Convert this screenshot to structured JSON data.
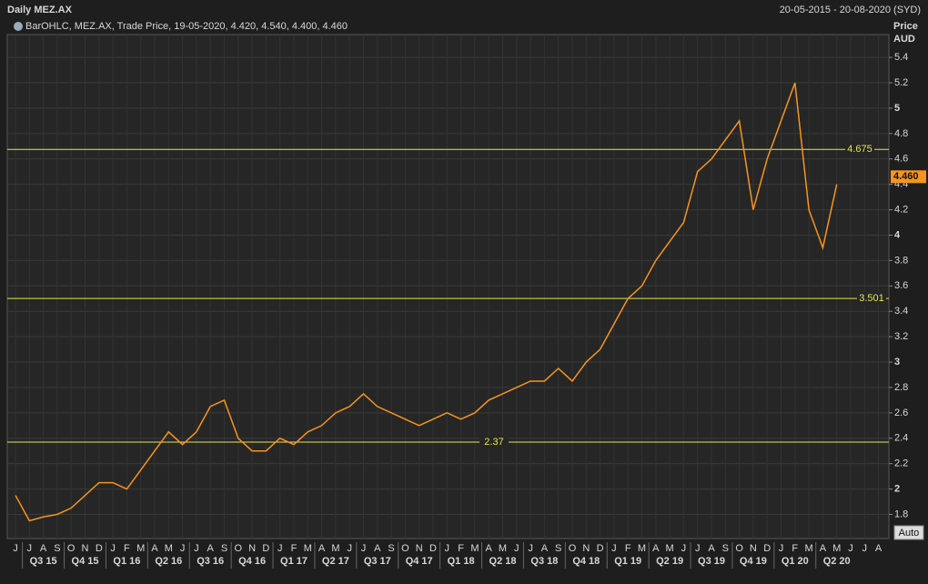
{
  "chart_data": {
    "type": "line",
    "title": "Daily MEZ.AX",
    "date_range": "20-05-2015 - 20-08-2020 (SYD)",
    "legend_text": "BarOHLC, MEZ.AX, Trade Price, 19-05-2020, 4.420, 4.540, 4.400, 4.460",
    "y_axis_label": [
      "Price",
      "AUD"
    ],
    "button": "Auto",
    "categories": [
      "J",
      "J",
      "A",
      "S",
      "O",
      "N",
      "D",
      "J",
      "F",
      "M",
      "A",
      "M",
      "J",
      "J",
      "A",
      "S",
      "O",
      "N",
      "D",
      "J",
      "F",
      "M",
      "A",
      "M",
      "J",
      "J",
      "A",
      "S",
      "O",
      "N",
      "D",
      "J",
      "F",
      "M",
      "A",
      "M",
      "J",
      "J",
      "A",
      "S",
      "O",
      "N",
      "D",
      "J",
      "F",
      "M",
      "A",
      "M",
      "J",
      "J",
      "A",
      "S",
      "O",
      "N",
      "D",
      "J",
      "F",
      "M",
      "A",
      "M",
      "J",
      "J",
      "A"
    ],
    "quarters": [
      "Q3 15",
      "Q4 15",
      "Q1 16",
      "Q2 16",
      "Q3 16",
      "Q4 16",
      "Q1 17",
      "Q2 17",
      "Q3 17",
      "Q4 17",
      "Q1 18",
      "Q2 18",
      "Q3 18",
      "Q4 18",
      "Q1 19",
      "Q2 19",
      "Q3 19",
      "Q4 19",
      "Q1 20",
      "Q2 20"
    ],
    "series": [
      {
        "name": "MEZ.AX",
        "color": "#f7941d",
        "values": [
          1.95,
          1.75,
          1.78,
          1.8,
          1.85,
          1.95,
          2.05,
          2.05,
          2.0,
          2.15,
          2.3,
          2.45,
          2.35,
          2.45,
          2.65,
          2.7,
          2.4,
          2.3,
          2.3,
          2.4,
          2.35,
          2.45,
          2.5,
          2.6,
          2.65,
          2.75,
          2.65,
          2.6,
          2.55,
          2.5,
          2.55,
          2.6,
          2.55,
          2.6,
          2.7,
          2.75,
          2.8,
          2.85,
          2.85,
          2.95,
          2.85,
          3.0,
          3.1,
          3.3,
          3.5,
          3.6,
          3.8,
          3.95,
          4.1,
          4.5,
          4.6,
          4.75,
          4.9,
          4.2,
          4.6,
          4.9,
          5.2,
          4.2,
          3.9,
          4.4,
          null,
          null,
          null
        ]
      }
    ],
    "levels": [
      4.675,
      3.501,
      2.37
    ],
    "level_color": "#e6e64c",
    "last_value": {
      "value": 4.46,
      "label": "4.460"
    },
    "ylim": [
      1.61,
      5.58
    ],
    "yticks": [
      1.8,
      2,
      2.2,
      2.4,
      2.6,
      2.8,
      3,
      3.2,
      3.4,
      3.6,
      3.8,
      4,
      4.2,
      4.4,
      4.6,
      4.8,
      5,
      5.2,
      5.4
    ],
    "grid": true
  }
}
